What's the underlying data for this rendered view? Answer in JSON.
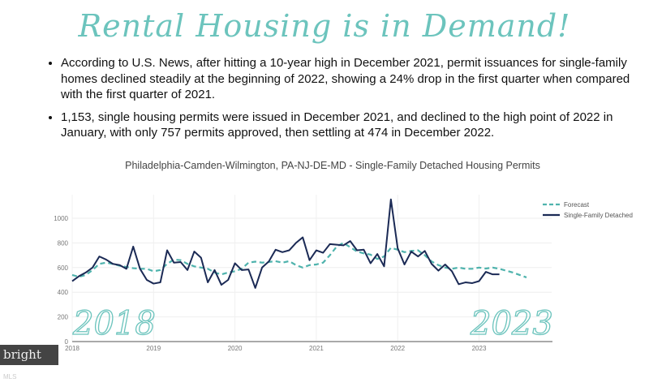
{
  "title": "Rental Housing is in Demand!",
  "bullets": [
    "According to U.S. News, after hitting a 10-year high in December 2021, permit issuances for single-family homes declined steadily at the beginning of 2022, showing a 24% drop in the first quarter when compared with the first quarter of 2021.",
    "1,153, single housing permits were issued in December 2021, and declined to the high point of 2022 in January, with only 757 permits approved, then settling at 474 in December 2022."
  ],
  "logo": {
    "main": "bright",
    "sub": "MLS"
  },
  "chart_data": {
    "type": "line",
    "title": "Philadelphia-Camden-Wilmington, PA-NJ-DE-MD - Single-Family Detached Housing Permits",
    "xlabel": "",
    "ylabel": "",
    "xlim": [
      2018,
      2023.75
    ],
    "ylim": [
      0,
      1150
    ],
    "xticks": [
      "2018",
      "2019",
      "2020",
      "2021",
      "2022",
      "2023"
    ],
    "yticks": [
      "0",
      "200",
      "400",
      "600",
      "800",
      "1000"
    ],
    "legend_position": "top-right",
    "annotations": [
      "2018",
      "2023"
    ],
    "colors": {
      "forecast": "#4fb3ad",
      "actual": "#1b2a55"
    },
    "series": [
      {
        "name": "Single-Family Detached",
        "style": "solid",
        "x_start": 2018.0,
        "x_step_months": 1,
        "values": [
          490,
          530,
          560,
          600,
          690,
          665,
          630,
          620,
          590,
          770,
          590,
          500,
          470,
          480,
          740,
          640,
          645,
          580,
          730,
          680,
          480,
          580,
          460,
          500,
          635,
          580,
          585,
          435,
          600,
          650,
          745,
          725,
          740,
          800,
          845,
          660,
          740,
          720,
          790,
          785,
          780,
          815,
          740,
          745,
          635,
          710,
          610,
          1153,
          757,
          625,
          730,
          690,
          735,
          630,
          575,
          625,
          570,
          465,
          480,
          474,
          490,
          565,
          545,
          545
        ]
      },
      {
        "name": "Forecast",
        "style": "dashed",
        "x_start": 2018.0,
        "x_step_months": 1,
        "values": [
          540,
          525,
          540,
          580,
          630,
          640,
          630,
          615,
          605,
          595,
          590,
          590,
          570,
          580,
          630,
          665,
          660,
          630,
          610,
          600,
          590,
          560,
          545,
          560,
          570,
          590,
          640,
          648,
          640,
          645,
          652,
          640,
          652,
          620,
          600,
          620,
          625,
          640,
          700,
          770,
          800,
          765,
          730,
          715,
          705,
          670,
          690,
          760,
          745,
          725,
          735,
          740,
          700,
          650,
          620,
          600,
          590,
          600,
          590,
          590,
          600,
          592,
          600,
          590,
          575,
          560,
          540,
          520
        ]
      }
    ]
  }
}
